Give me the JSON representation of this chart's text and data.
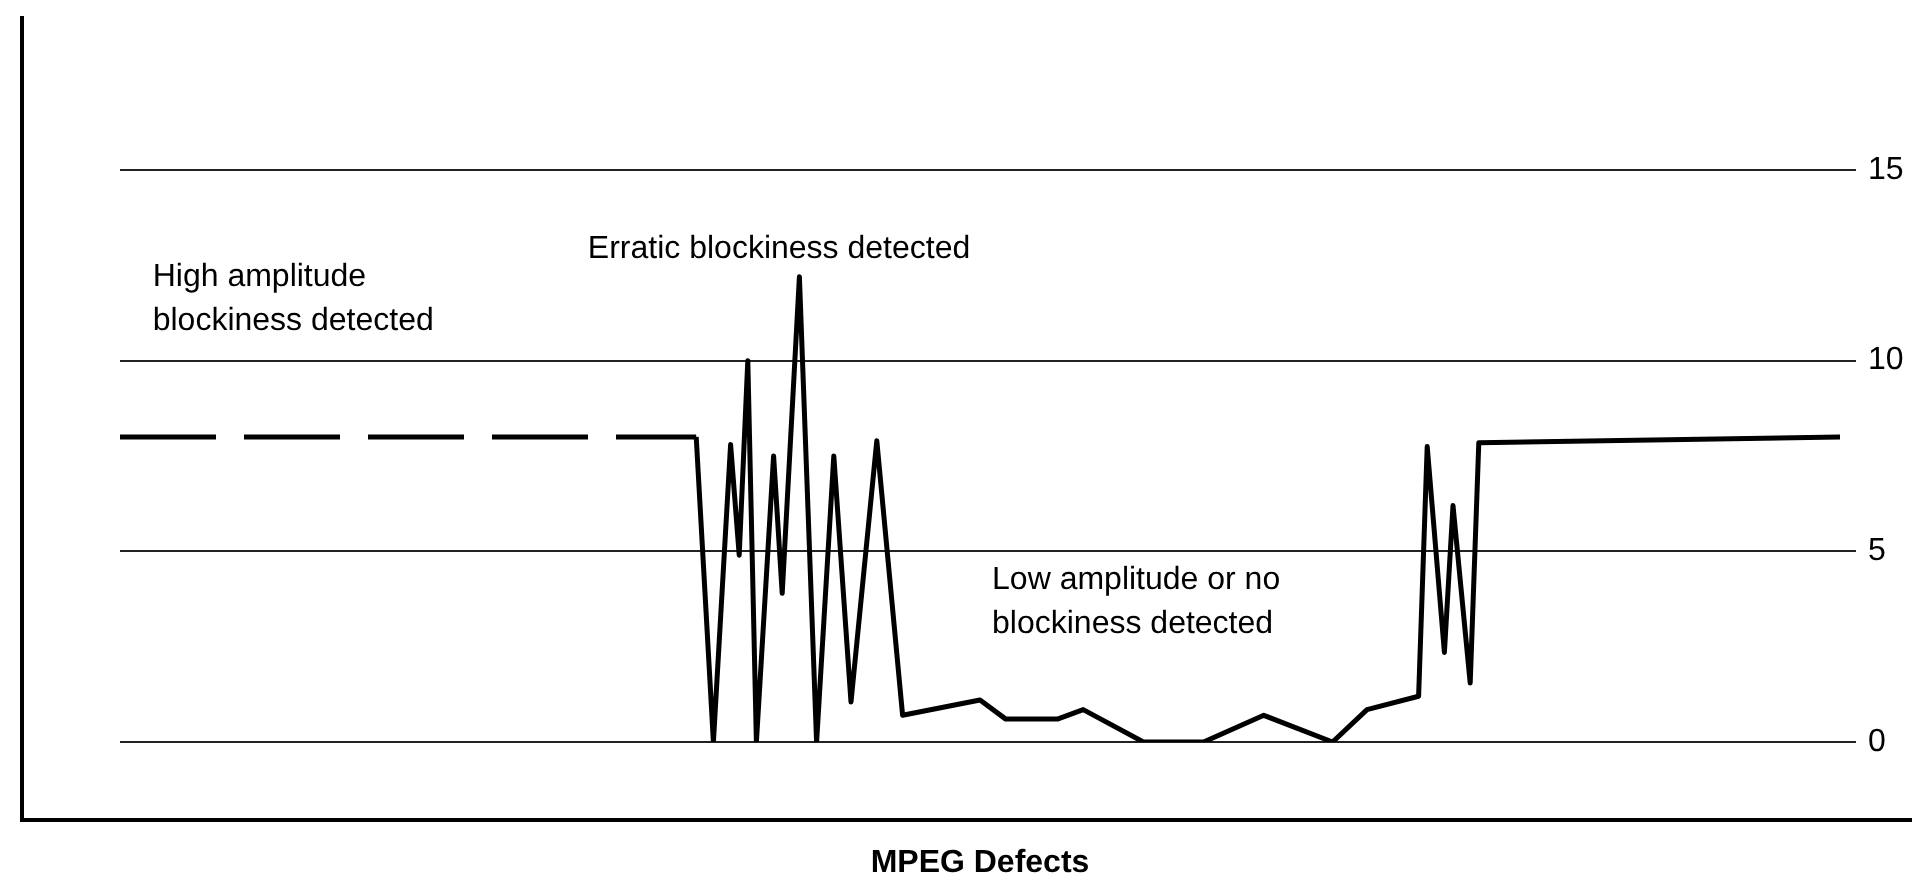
{
  "chart_data": {
    "type": "line",
    "xlabel": "MPEG Defects",
    "ylim": [
      0,
      15
    ],
    "yticks": [
      0,
      5,
      10,
      15
    ],
    "grid": "y",
    "legend": false,
    "tick_labels": "y",
    "marker": "none",
    "categories": [
      null,
      null,
      null,
      null,
      null,
      null,
      null,
      null,
      null,
      null,
      null,
      null,
      null,
      null,
      null,
      null,
      null,
      null,
      null,
      null,
      null,
      null,
      null,
      null,
      null,
      null,
      null,
      null,
      null,
      null,
      null,
      null,
      null,
      null,
      null,
      null,
      null,
      null,
      null,
      null,
      null,
      null,
      null,
      null,
      null,
      null,
      null,
      null,
      null,
      null,
      null,
      null,
      null,
      null,
      null,
      null,
      null,
      null,
      null,
      null,
      null,
      null,
      null,
      null,
      null,
      null,
      null,
      null,
      null,
      null,
      null,
      null,
      null,
      null,
      null,
      null,
      null,
      null,
      null,
      null,
      null,
      null,
      null,
      null,
      null,
      null,
      null,
      null,
      null,
      null,
      null,
      null,
      null,
      null,
      null,
      null,
      null,
      null,
      null,
      null,
      null,
      null,
      null,
      null,
      null,
      null,
      null,
      null,
      null,
      null,
      null,
      null,
      null,
      null,
      null,
      null,
      null,
      null,
      null,
      null,
      null,
      null,
      null,
      null,
      null,
      null,
      null,
      null,
      null,
      null,
      null,
      null,
      null,
      null,
      null,
      null,
      null,
      null,
      null,
      null,
      null,
      null,
      null,
      null,
      null,
      null,
      null,
      null,
      null,
      null,
      null,
      null,
      null,
      null,
      null,
      null,
      null,
      null,
      null,
      null,
      null,
      null,
      null,
      null,
      null,
      null,
      null,
      null,
      null,
      null,
      null,
      null,
      null,
      null,
      null,
      null,
      null,
      null,
      null,
      null,
      null,
      null,
      null,
      null,
      null,
      null,
      null,
      null,
      null,
      null,
      null,
      null,
      null,
      null,
      null,
      null,
      null,
      null,
      null,
      null,
      null
    ],
    "series": [
      {
        "color": "#000000",
        "line_style": "dashed",
        "values": [
          8,
          null,
          null,
          null,
          null,
          null,
          null,
          null,
          null,
          null,
          null,
          null,
          null,
          null,
          null,
          null,
          null,
          null,
          null,
          null,
          null,
          null,
          null,
          null,
          null,
          null,
          null,
          null,
          null,
          null,
          null,
          null,
          null,
          null,
          null,
          null,
          null,
          null,
          null,
          null,
          null,
          null,
          null,
          null,
          null,
          null,
          null,
          null,
          null,
          null,
          null,
          null,
          null,
          null,
          null,
          null,
          null,
          null,
          null,
          null,
          null,
          null,
          null,
          null,
          null,
          null,
          null,
          8,
          null,
          null,
          null,
          null,
          null,
          null,
          null,
          null,
          null,
          null,
          null,
          null,
          null,
          null,
          null,
          null,
          null,
          null,
          null,
          null,
          null,
          null,
          null,
          null,
          null,
          null,
          null,
          null,
          null,
          null,
          null,
          null,
          null,
          null,
          null,
          null,
          null,
          null,
          null,
          null,
          null,
          null,
          null,
          null,
          null,
          null,
          null,
          null,
          null,
          null,
          null,
          null,
          null,
          null,
          null,
          null,
          null,
          null,
          null,
          null,
          null,
          null,
          null,
          null,
          null,
          null,
          null,
          null,
          null,
          null,
          null,
          null,
          null,
          null,
          null,
          null,
          null,
          null,
          null,
          null,
          null,
          null,
          null,
          null,
          null,
          null,
          null,
          null,
          null,
          null,
          null,
          null,
          null,
          null,
          null,
          null,
          null,
          null,
          null,
          null,
          null,
          null,
          null,
          null,
          null,
          null,
          null,
          null,
          null,
          null,
          null,
          null,
          null,
          null,
          null,
          null,
          null,
          null,
          null,
          null,
          null,
          null,
          null,
          null,
          null,
          null,
          null,
          null,
          null,
          null,
          null,
          null,
          null
        ]
      },
      {
        "color": "#000000",
        "line_style": "solid",
        "values": [
          null,
          null,
          null,
          null,
          null,
          null,
          null,
          null,
          null,
          null,
          null,
          null,
          null,
          null,
          null,
          null,
          null,
          null,
          null,
          null,
          null,
          null,
          null,
          null,
          null,
          null,
          null,
          null,
          null,
          null,
          null,
          null,
          null,
          null,
          null,
          null,
          null,
          null,
          null,
          null,
          null,
          null,
          null,
          null,
          null,
          null,
          null,
          null,
          null,
          null,
          null,
          null,
          null,
          null,
          null,
          null,
          null,
          null,
          null,
          null,
          null,
          null,
          null,
          null,
          null,
          null,
          null,
          8,
          null,
          0,
          null,
          7.8,
          4.9,
          10,
          0,
          null,
          7.5,
          3.9,
          null,
          12.2,
          null,
          0,
          null,
          7.5,
          null,
          1.05,
          null,
          null,
          7.9,
          null,
          null,
          0.7,
          null,
          null,
          null,
          null,
          null,
          null,
          null,
          null,
          1.1,
          null,
          null,
          0.6,
          null,
          null,
          null,
          null,
          null,
          0.6,
          null,
          null,
          0.85,
          null,
          null,
          null,
          null,
          null,
          null,
          0,
          null,
          null,
          null,
          null,
          null,
          null,
          0,
          null,
          null,
          null,
          null,
          null,
          null,
          0.7,
          null,
          null,
          null,
          null,
          null,
          null,
          null,
          0,
          null,
          null,
          null,
          0.85,
          null,
          null,
          null,
          null,
          null,
          1.2,
          7.75,
          null,
          2.35,
          6.2,
          null,
          1.55,
          7.85,
          null,
          null,
          null,
          null,
          null,
          null,
          null,
          null,
          null,
          null,
          null,
          null,
          null,
          null,
          null,
          null,
          null,
          null,
          null,
          null,
          null,
          null,
          null,
          null,
          null,
          null,
          null,
          null,
          null,
          null,
          null,
          null,
          null,
          null,
          null,
          null,
          null,
          null,
          null,
          null,
          null,
          8
        ]
      }
    ],
    "annotations": [
      "High amplitude\nblockiness detected",
      "Erratic blockiness detected",
      "Low amplitude or no\nblockiness detected"
    ]
  }
}
